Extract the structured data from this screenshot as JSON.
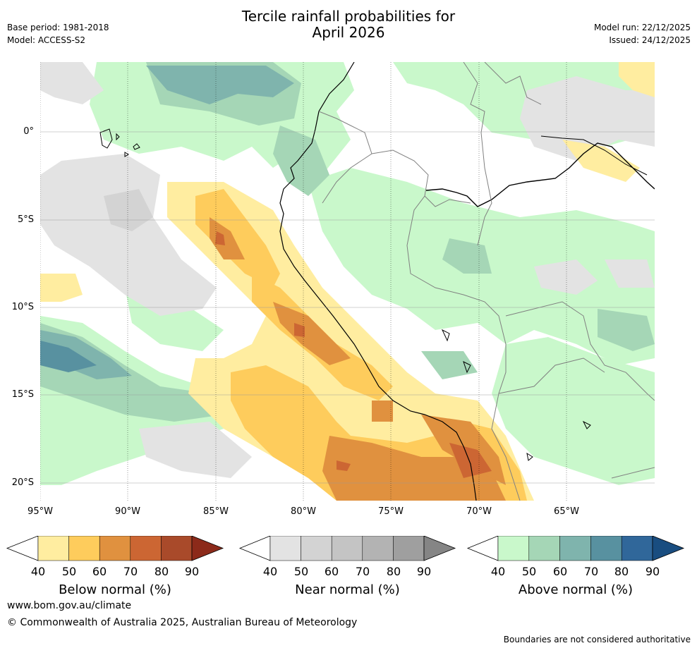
{
  "header": {
    "title_line1": "Tercile rainfall probabilities for",
    "title_line2": "April 2026",
    "base_period": "Base period: 1981-2018",
    "model": "Model: ACCESS-S2",
    "model_run": "Model run: 22/12/2025",
    "issued": "Issued: 24/12/2025"
  },
  "map": {
    "lat_labels": [
      "0°",
      "5°S",
      "10°S",
      "15°S",
      "20°S"
    ],
    "lon_labels": [
      "95°W",
      "90°W",
      "85°W",
      "80°W",
      "75°W",
      "70°W",
      "65°W"
    ]
  },
  "legends": [
    {
      "title": "Below normal (%)",
      "ticks": [
        "40",
        "50",
        "60",
        "70",
        "80",
        "90"
      ],
      "colors": [
        "#ffeda0",
        "#fecc5c",
        "#e0913f",
        "#cc6633",
        "#a94a2a",
        "#8c2a1a"
      ]
    },
    {
      "title": "Near normal (%)",
      "ticks": [
        "40",
        "50",
        "60",
        "70",
        "80",
        "90"
      ],
      "colors": [
        "#e3e3e3",
        "#d3d3d3",
        "#c4c4c4",
        "#b3b3b3",
        "#9f9f9f",
        "#858585"
      ]
    },
    {
      "title": "Above normal (%)",
      "ticks": [
        "40",
        "50",
        "60",
        "70",
        "80",
        "90"
      ],
      "colors": [
        "#c9f8cb",
        "#a5d6b6",
        "#7fb4ad",
        "#5891a0",
        "#30679a",
        "#194d80"
      ]
    }
  ],
  "footer": {
    "website": "www.bom.gov.au/climate",
    "copyright": "© Commonwealth of Australia 2025, Australian Bureau of Meteorology",
    "disclaimer": "Boundaries are not considered authoritative"
  }
}
